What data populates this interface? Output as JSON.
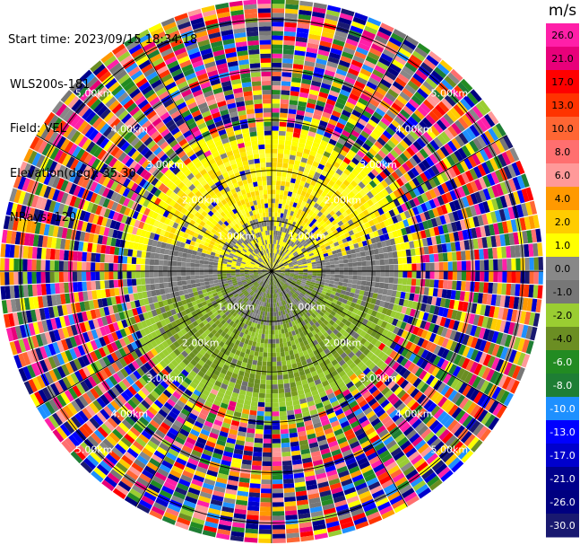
{
  "header": {
    "start_time": "Start time: 2023/09/15 18:34:18",
    "instrument": "WLS200s-181",
    "field": "Field: VEL",
    "elevation": "Elevation(deg): 35.30",
    "nrays": "NRays: 120"
  },
  "chart_data": {
    "type": "heatmap",
    "projection": "polar-ppi",
    "field": "VEL",
    "units": "m/s",
    "n_rays": 120,
    "range_ring_labels": [
      "1.00km",
      "2.00km",
      "3.00km",
      "4.00km",
      "5.00km"
    ],
    "range_ring_km": [
      1,
      2,
      3,
      4,
      5
    ],
    "max_range_km": 5.4,
    "colorbar": {
      "label": "m/s",
      "tick_labels": [
        "26.0",
        "21.0",
        "17.0",
        "13.0",
        "10.0",
        "8.0",
        "6.0",
        "4.0",
        "2.0",
        "1.0",
        "0.0",
        "-1.0",
        "-2.0",
        "-4.0",
        "-6.0",
        "-8.0",
        "-10.0",
        "-13.0",
        "-17.0",
        "-21.0",
        "-26.0",
        "-30.0"
      ],
      "colors": [
        "#ff1fa8",
        "#e8007a",
        "#ff0000",
        "#ff3300",
        "#ff6633",
        "#ff6f6f",
        "#ff9999",
        "#ff9900",
        "#ffcc00",
        "#ffff00",
        "#888888",
        "#777777",
        "#9acd32",
        "#6b8e23",
        "#228b22",
        "#1e7e34",
        "#1e90ff",
        "#0000ff",
        "#0000cd",
        "#00008b",
        "#000080",
        "#191970"
      ]
    },
    "pattern": {
      "inner_clean_radius_km": 2.55,
      "north_half": "positive velocity (yellow, 1-4 m/s)",
      "south_half": "negative velocity (olive/green, -1 to -4 m/s)",
      "transition": "gray near 0 m/s along east-west line",
      "outer_noise": "random colors beyond ~2.6 km"
    }
  }
}
